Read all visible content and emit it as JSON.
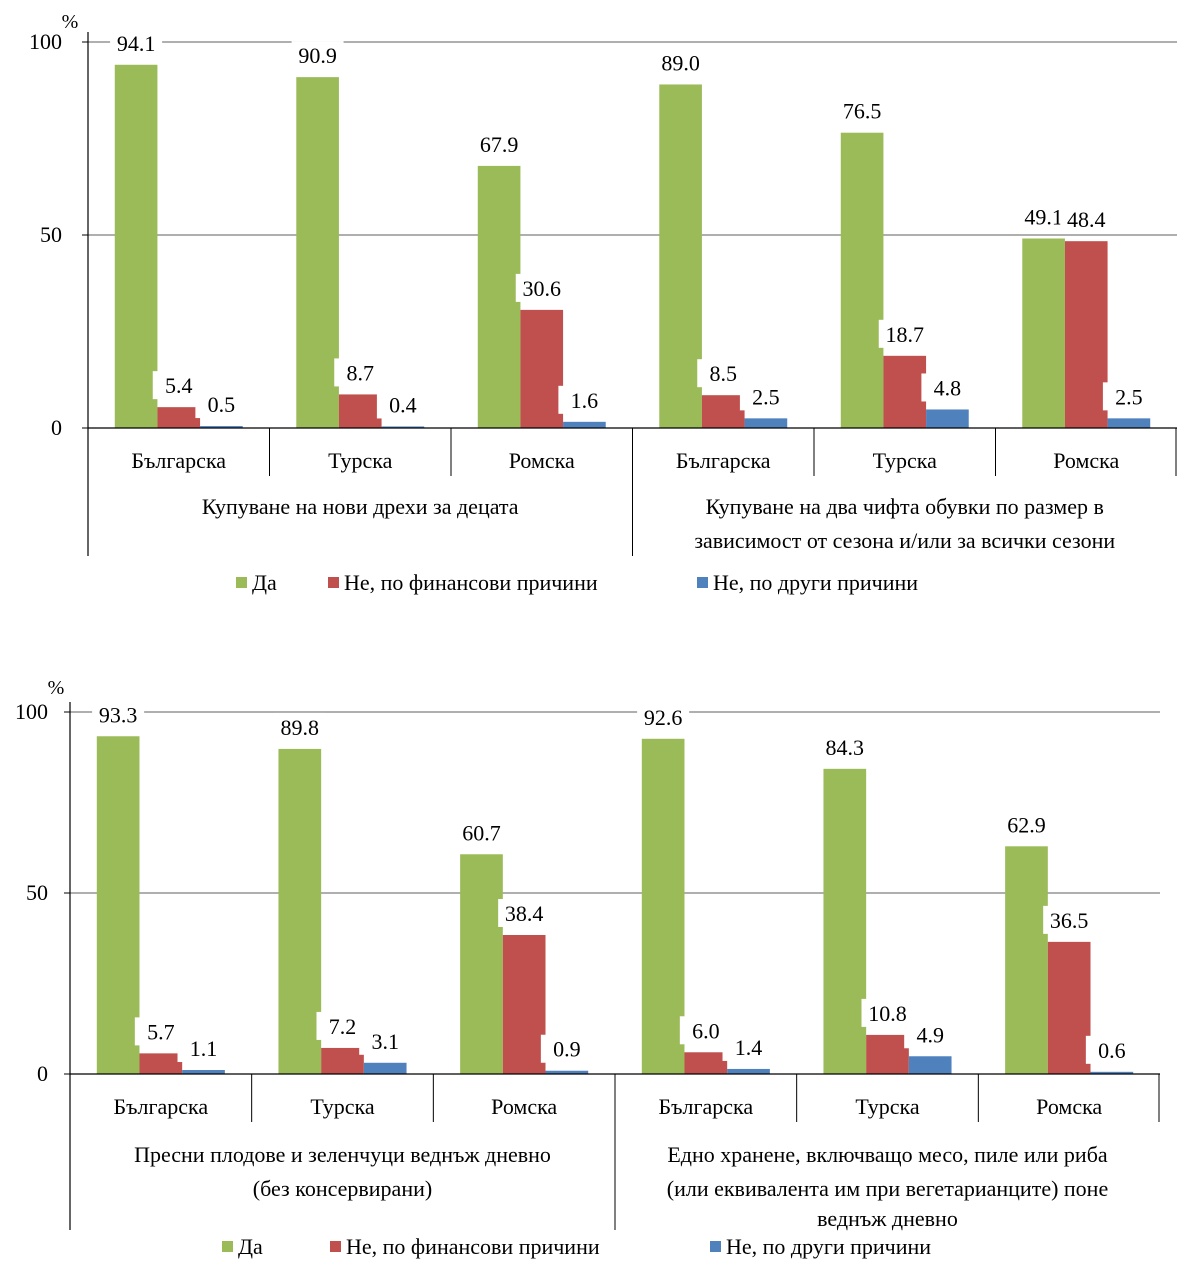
{
  "chart_data": [
    {
      "type": "bar",
      "unit_label": "%",
      "ylim": [
        0,
        100
      ],
      "yticks": [
        0,
        50,
        100
      ],
      "grid": true,
      "legend_position": "bottom",
      "categories": [
        "Българска",
        "Турска",
        "Ромска",
        "Българска",
        "Турска",
        "Ромска"
      ],
      "groups": [
        {
          "label": "Купуване  на нови дрехи за децата"
        },
        {
          "label": "Купуване  на два чифта обувки по размер в зависимост от сезона и/или за всички сезони"
        }
      ],
      "series": [
        {
          "name": "Да",
          "color": "#9bbb59",
          "values": [
            94.1,
            90.9,
            67.9,
            89.0,
            76.5,
            49.1
          ]
        },
        {
          "name": "Не, по финансови причини",
          "color": "#c0504d",
          "values": [
            5.4,
            8.7,
            30.6,
            8.5,
            18.7,
            48.4
          ]
        },
        {
          "name": "Не, по други причини",
          "color": "#4f81bd",
          "values": [
            0.5,
            0.4,
            1.6,
            2.5,
            4.8,
            2.5
          ]
        }
      ]
    },
    {
      "type": "bar",
      "unit_label": "%",
      "ylim": [
        0,
        100
      ],
      "yticks": [
        0,
        50,
        100
      ],
      "grid": true,
      "legend_position": "bottom",
      "categories": [
        "Българска",
        "Турска",
        "Ромска",
        "Българска",
        "Турска",
        "Ромска"
      ],
      "groups": [
        {
          "label": "Пресни плодове и зеленчуци  веднъж дневно (без консервирани)"
        },
        {
          "label": "Едно хранене, включващо месо, пиле или риба (или еквивалента им при вегетарианците) поне веднъж дневно"
        }
      ],
      "series": [
        {
          "name": "Да",
          "color": "#9bbb59",
          "values": [
            93.3,
            89.8,
            60.7,
            92.6,
            84.3,
            62.9
          ]
        },
        {
          "name": "Не, по финансови причини",
          "color": "#c0504d",
          "values": [
            5.7,
            7.2,
            38.4,
            6.0,
            10.8,
            36.5
          ]
        },
        {
          "name": "Не, по други причини",
          "color": "#4f81bd",
          "values": [
            1.1,
            3.1,
            0.9,
            1.4,
            4.9,
            0.6
          ]
        }
      ]
    }
  ]
}
